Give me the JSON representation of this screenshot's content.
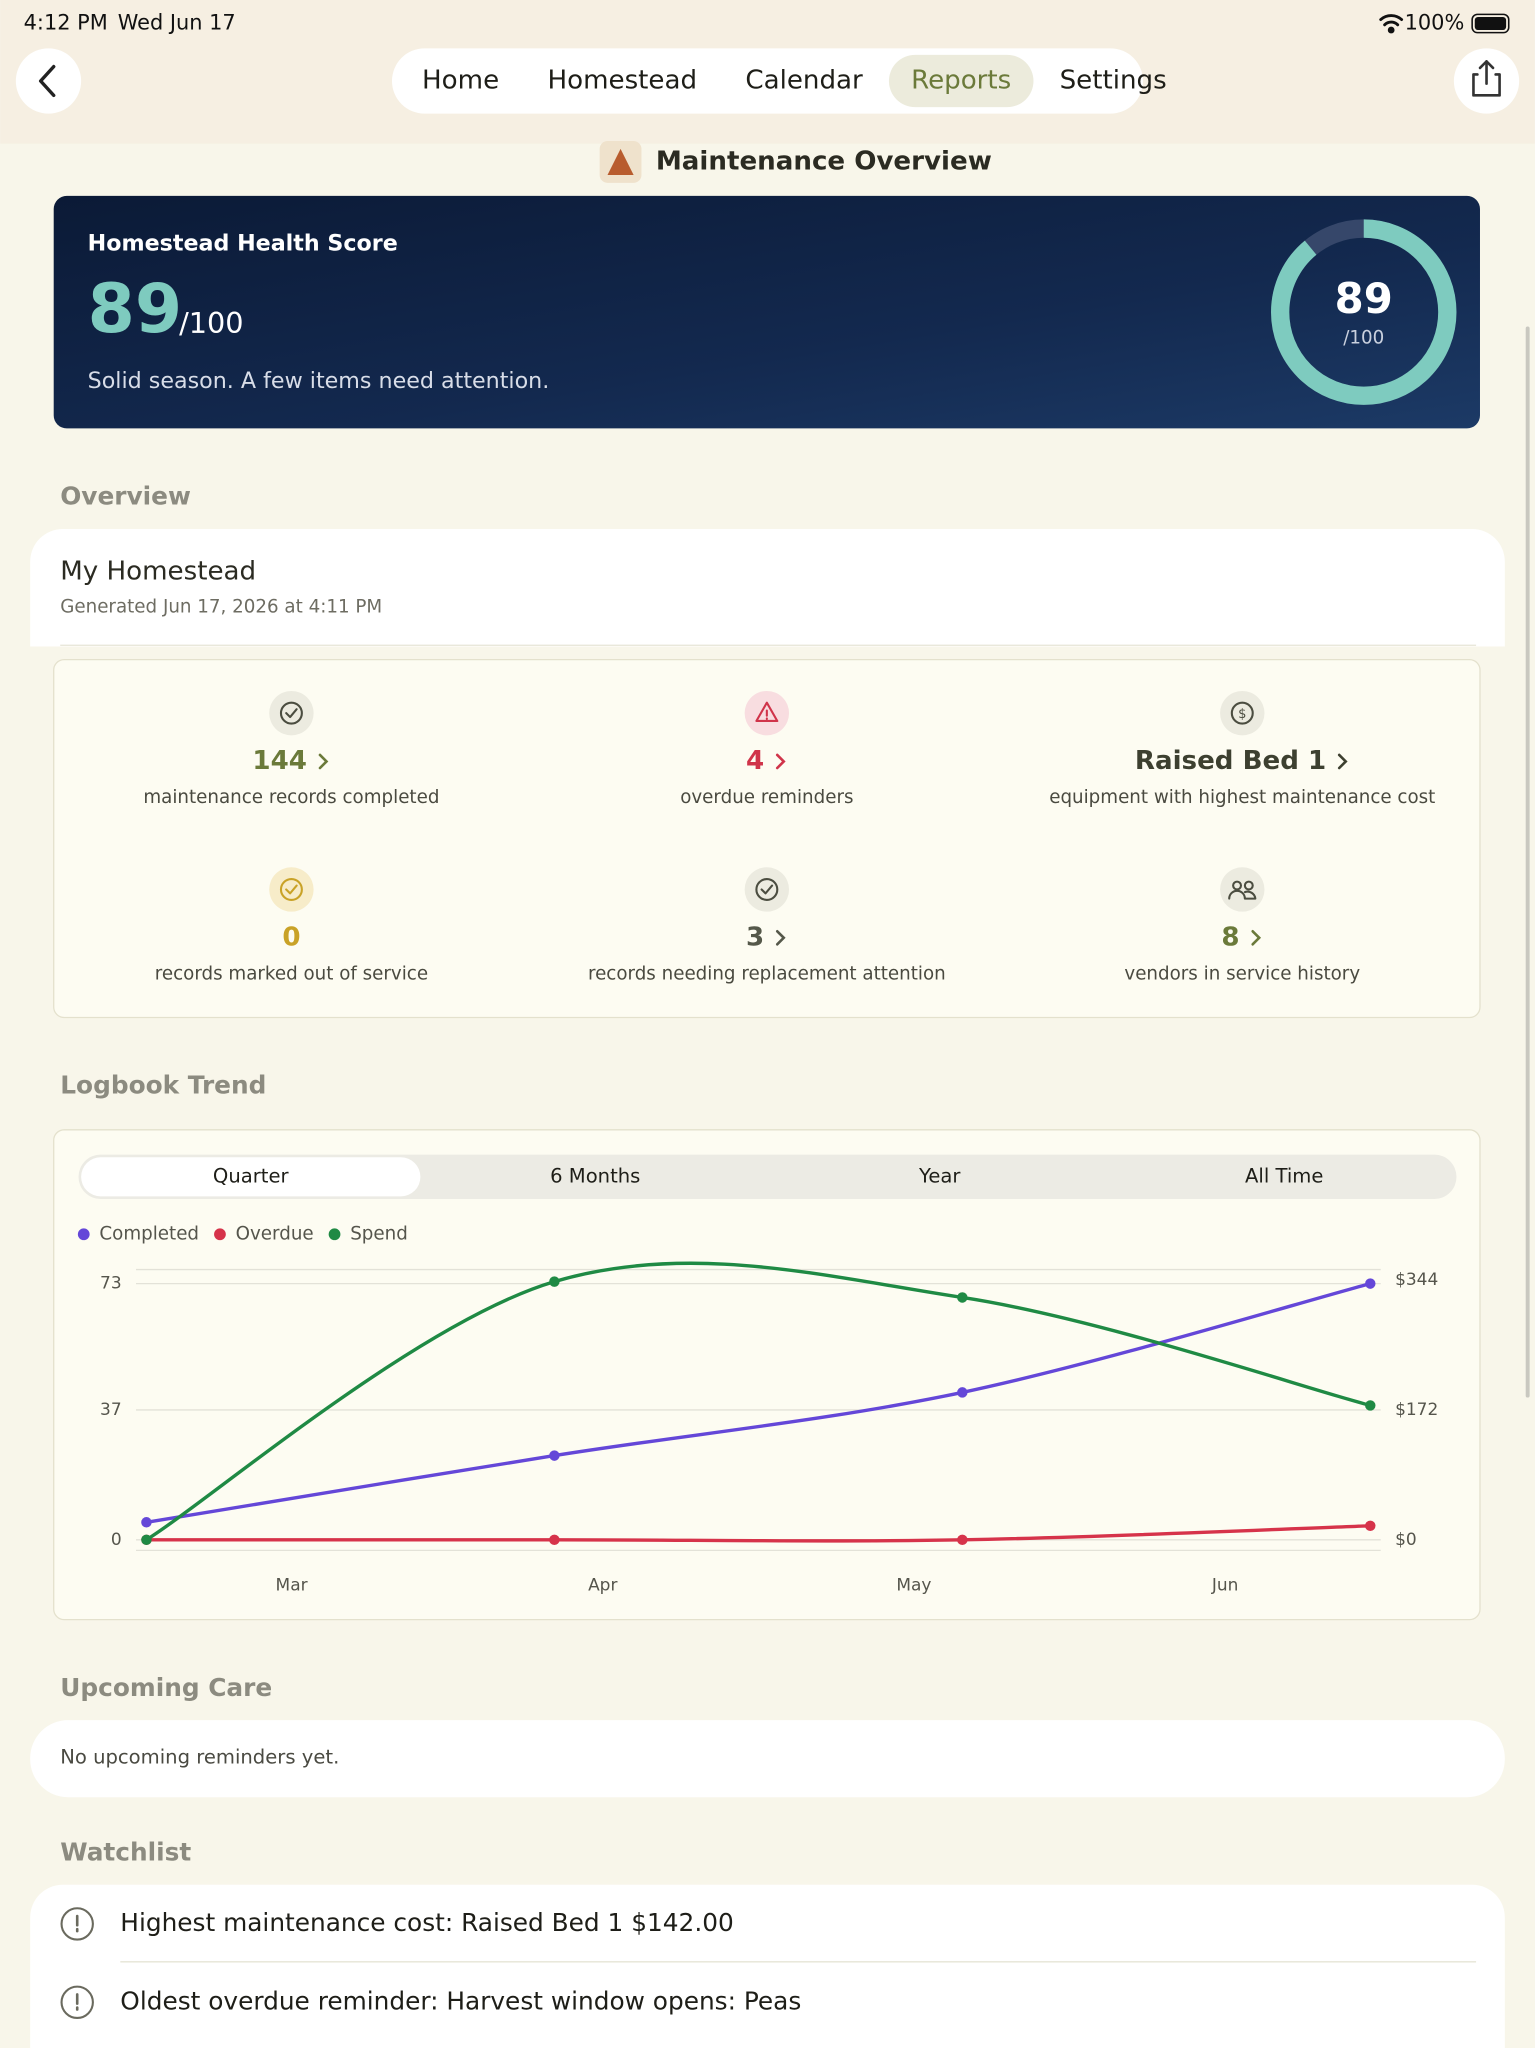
{
  "status_bar": {
    "time": "4:12 PM",
    "date": "Wed Jun 17",
    "battery": "100%"
  },
  "nav": {
    "tabs": [
      "Home",
      "Homestead",
      "Calendar",
      "Reports",
      "Settings"
    ],
    "active": 3
  },
  "page_title": "Maintenance Overview",
  "health": {
    "label": "Homestead Health Score",
    "score": 89,
    "max": {
      "value": 100,
      "label": "/100"
    },
    "message": "Solid season. A few items need attention."
  },
  "overview": {
    "heading": "Overview",
    "name": "My Homestead",
    "generated": "Generated Jun 17, 2026 at 4:11 PM"
  },
  "stats": [
    {
      "value": 144,
      "label": "maintenance records completed",
      "color": "#6b7a3a",
      "link": true
    },
    {
      "value": 4,
      "label": "overdue reminders",
      "color": "#d0344a",
      "link": true
    },
    {
      "value": "Raised Bed 1",
      "label": "equipment with highest maintenance cost",
      "color": "#3d4030",
      "link": true
    },
    {
      "value": 0,
      "label": "records marked out of service",
      "color": "#c9a227",
      "link": false
    },
    {
      "value": 3,
      "label": "records needing replacement attention",
      "color": "#55584a",
      "link": true
    },
    {
      "value": 8,
      "label": "vendors in service history",
      "color": "#6b7a3a",
      "link": true
    }
  ],
  "trend": {
    "heading": "Logbook Trend",
    "segments": [
      "Quarter",
      "6 Months",
      "Year",
      "All Time"
    ],
    "active": 0
  },
  "chart_data": {
    "type": "line",
    "x_labels": [
      "Mar",
      "Apr",
      "May",
      "Jun"
    ],
    "series": [
      {
        "name": "Completed",
        "color": "#6447d8",
        "values": [
          5,
          24,
          42,
          73
        ]
      },
      {
        "name": "Overdue",
        "color": "#d6334a",
        "values": [
          0,
          0,
          0,
          4
        ]
      },
      {
        "name": "Spend",
        "color": "#1f8a44",
        "values": [
          0,
          342,
          321,
          178
        ],
        "axis": "y2"
      }
    ],
    "ylim": [
      -3,
      77
    ],
    "yticks": [
      0,
      37,
      73
    ],
    "y2lim": [
      -14,
      358
    ],
    "y2ticks": [
      {
        "value": 0,
        "label": "$0"
      },
      {
        "value": 172,
        "label": "$172"
      },
      {
        "value": 344,
        "label": "$344"
      }
    ],
    "grid": true
  },
  "upcoming": {
    "heading": "Upcoming Care",
    "empty": "No upcoming reminders yet."
  },
  "watchlist": {
    "heading": "Watchlist",
    "items": [
      "Highest maintenance cost: Raised Bed 1 $142.00",
      "Oldest overdue reminder: Harvest window opens: Peas"
    ]
  }
}
